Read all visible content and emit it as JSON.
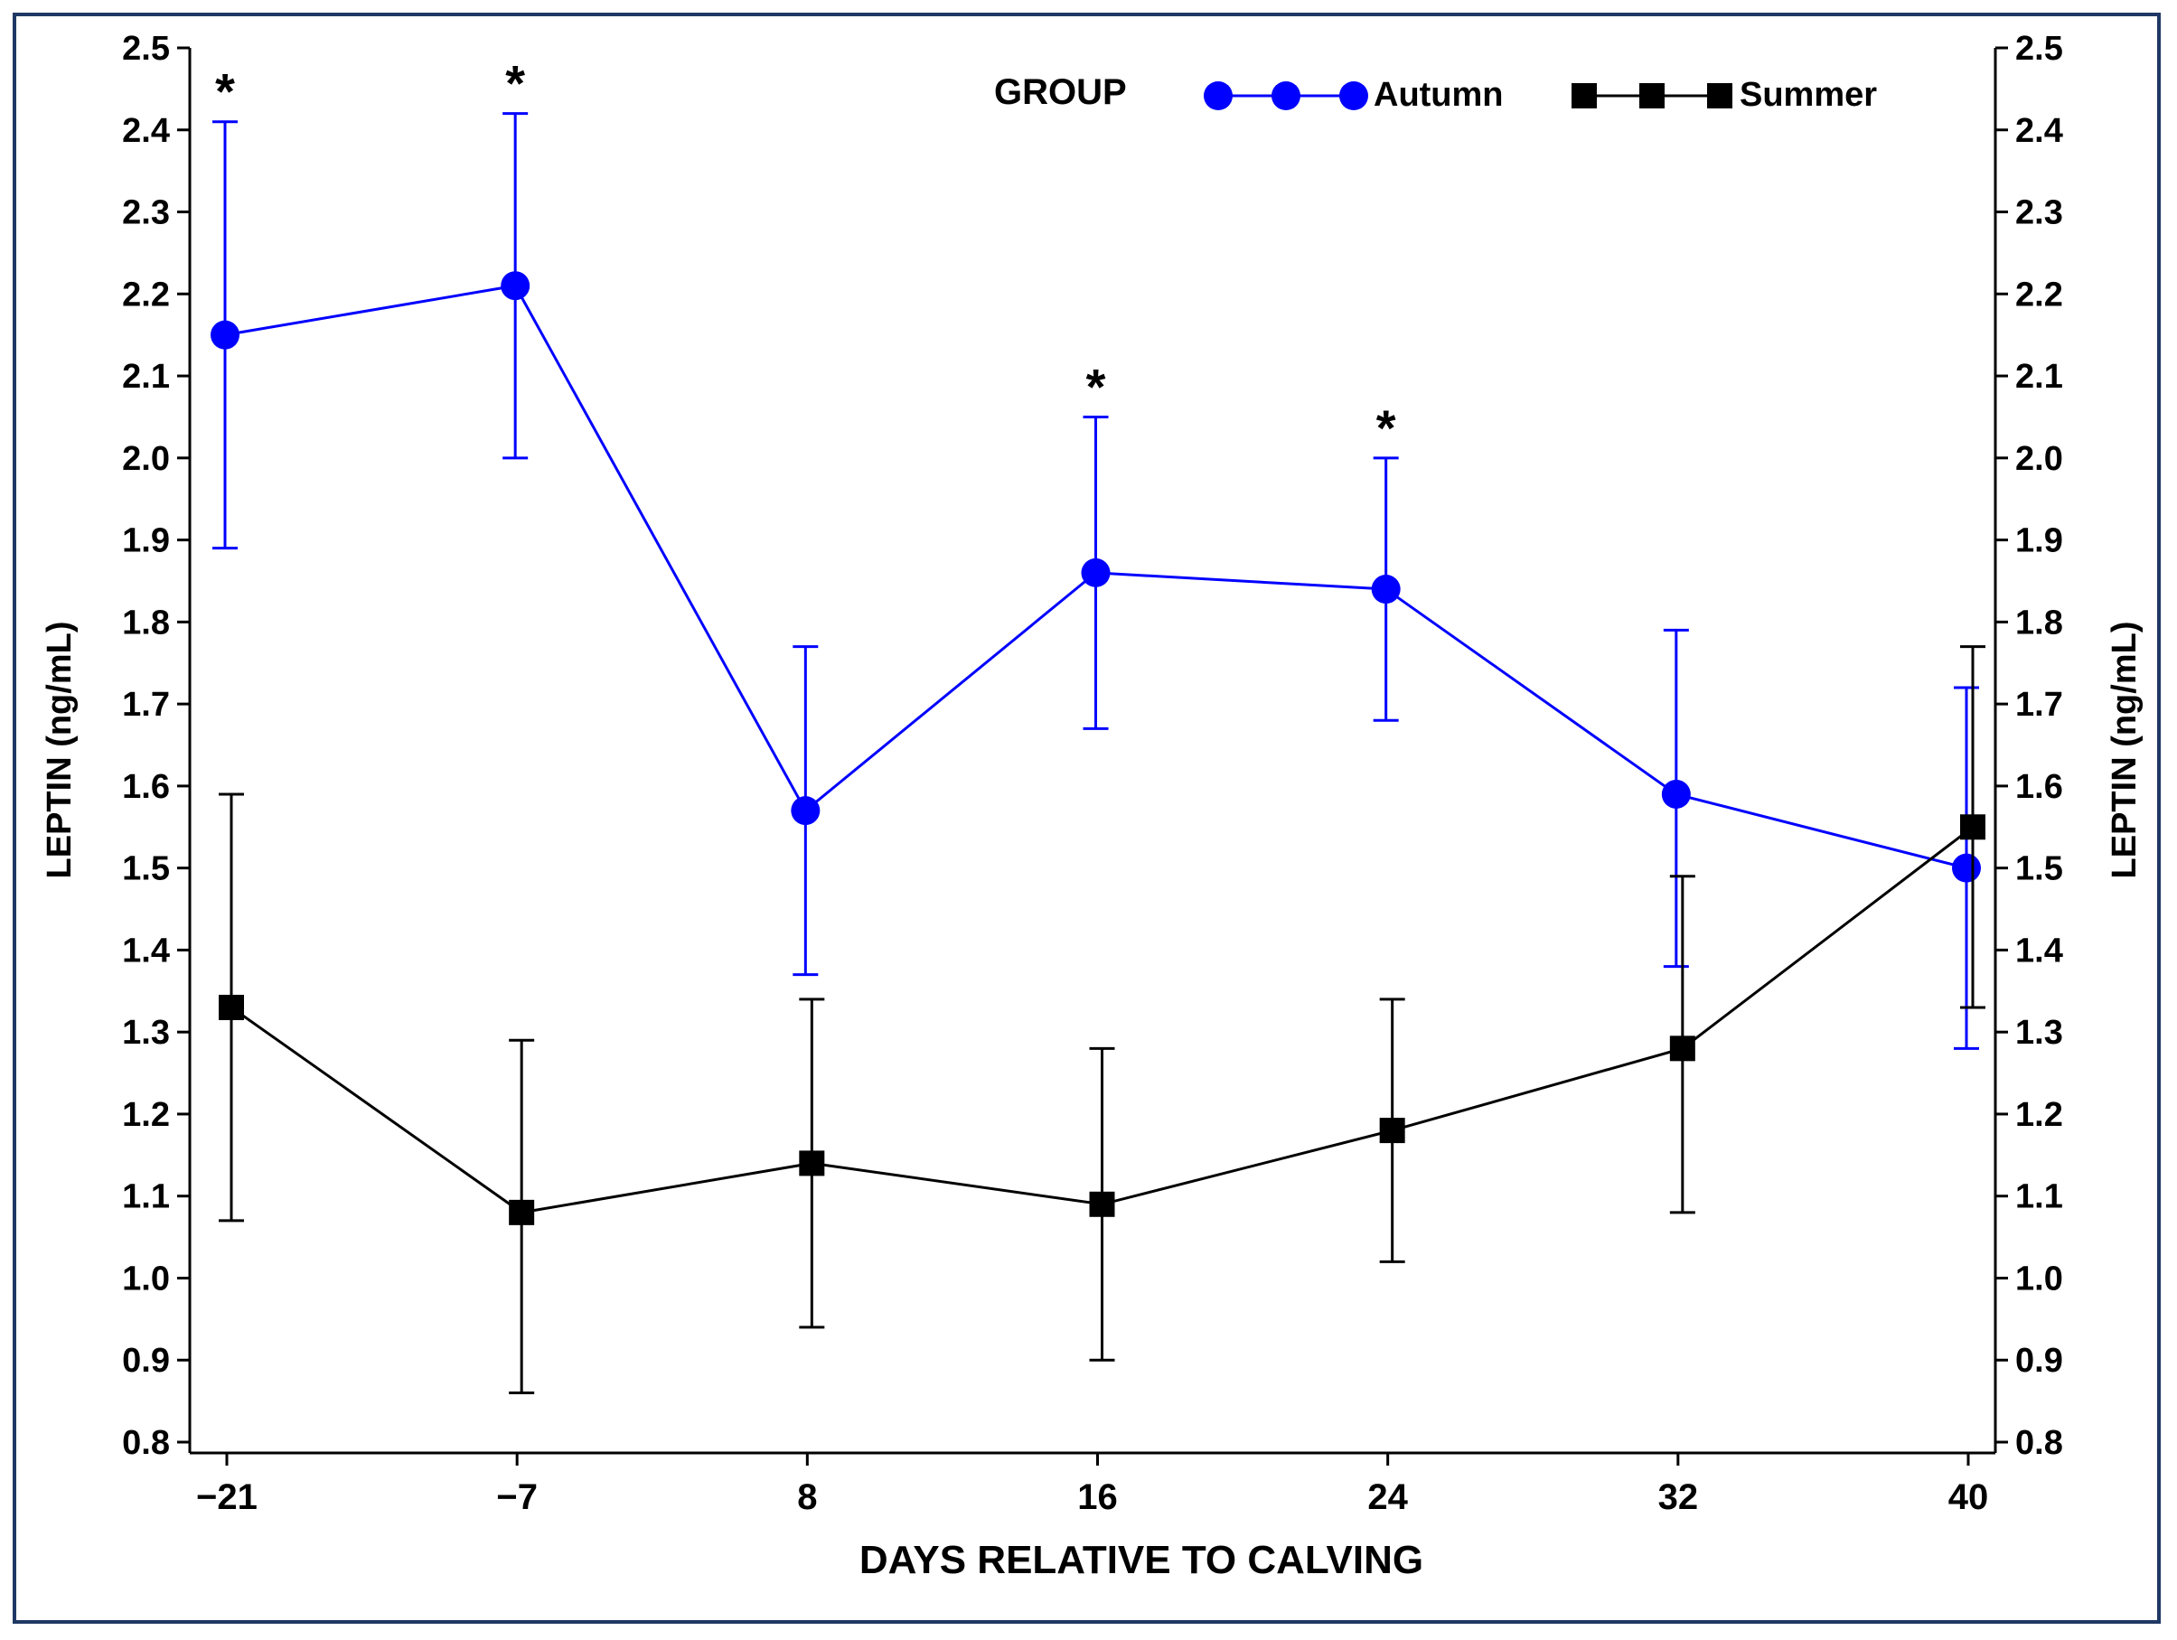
{
  "chart_data": {
    "type": "line",
    "title": "",
    "xlabel": "DAYS RELATIVE TO CALVING",
    "ylabel": "LEPTIN  (ng/mL)",
    "ylabel_right": "LEPTIN  (ng/mL)",
    "categories": [
      "−21",
      "−7",
      "8",
      "16",
      "24",
      "32",
      "40"
    ],
    "ylim": [
      0.8,
      2.5
    ],
    "yticks": [
      "0.8",
      "0.9",
      "1.0",
      "1.1",
      "1.2",
      "1.3",
      "1.4",
      "1.5",
      "1.6",
      "1.7",
      "1.8",
      "1.9",
      "2.0",
      "2.1",
      "2.2",
      "2.3",
      "2.4",
      "2.5"
    ],
    "grid": false,
    "legend": {
      "title": "GROUP",
      "placement": "top-right"
    },
    "series": [
      {
        "name": "Autumn",
        "color": "#0000ff",
        "marker": "circle",
        "values": [
          2.15,
          2.21,
          1.57,
          1.86,
          1.84,
          1.59,
          1.5
        ],
        "error_low": [
          1.89,
          2.0,
          1.37,
          1.67,
          1.68,
          1.38,
          1.28
        ],
        "error_high": [
          2.41,
          2.42,
          1.77,
          2.05,
          2.0,
          1.79,
          1.72
        ]
      },
      {
        "name": "Summer",
        "color": "#000000",
        "marker": "square",
        "values": [
          1.33,
          1.08,
          1.14,
          1.09,
          1.18,
          1.28,
          1.55
        ],
        "error_low": [
          1.07,
          0.86,
          0.94,
          0.9,
          1.02,
          1.08,
          1.33
        ],
        "error_high": [
          1.59,
          1.29,
          1.34,
          1.28,
          1.34,
          1.49,
          1.77
        ]
      }
    ],
    "annotations": [
      {
        "text": "*",
        "category_index": 0
      },
      {
        "text": "*",
        "category_index": 1
      },
      {
        "text": "*",
        "category_index": 3
      },
      {
        "text": "*",
        "category_index": 4
      }
    ]
  }
}
